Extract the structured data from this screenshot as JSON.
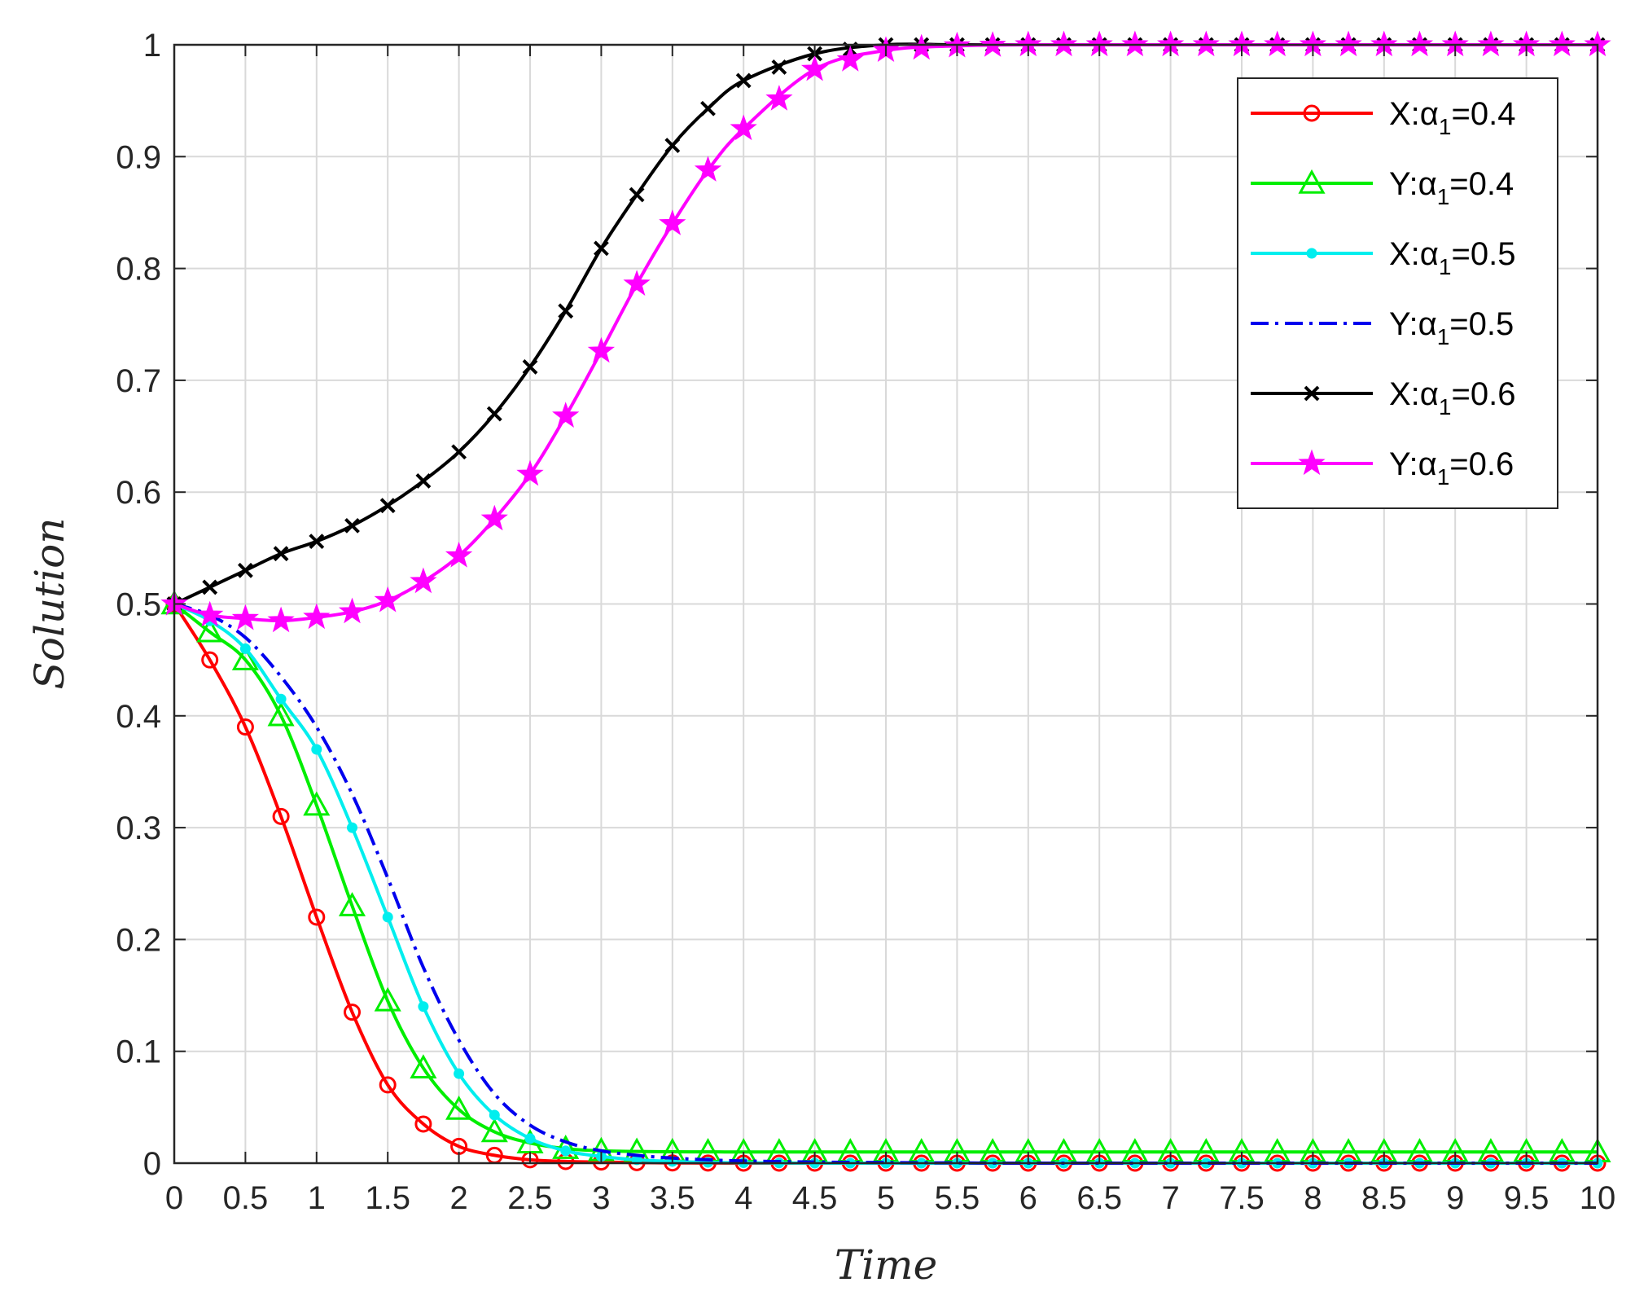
{
  "chart_data": {
    "type": "line",
    "xlabel": "Time",
    "ylabel": "Solution",
    "xlim": [
      0,
      10
    ],
    "ylim": [
      0,
      1
    ],
    "xticks": [
      "0",
      "0.5",
      "1",
      "1.5",
      "2",
      "2.5",
      "3",
      "3.5",
      "4",
      "4.5",
      "5",
      "5.5",
      "6",
      "6.5",
      "7",
      "7.5",
      "8",
      "8.5",
      "9",
      "9.5",
      "10"
    ],
    "yticks": [
      "0",
      "0.1",
      "0.2",
      "0.3",
      "0.4",
      "0.5",
      "0.6",
      "0.7",
      "0.8",
      "0.9",
      "1"
    ],
    "grid": true,
    "legend_position": "top-right",
    "x": [
      0,
      0.25,
      0.5,
      0.75,
      1,
      1.25,
      1.5,
      1.75,
      2,
      2.25,
      2.5,
      2.75,
      3,
      3.25,
      3.5,
      3.75,
      4,
      4.5,
      5,
      5.5,
      6,
      7,
      8,
      9,
      10
    ],
    "series": [
      {
        "name": "X:α1=0.4",
        "name_main": "X:α",
        "name_sub": "1",
        "name_rest": "=0.4",
        "color": "#ff0000",
        "marker": "circle",
        "dash": "",
        "values": [
          0.5,
          0.45,
          0.39,
          0.31,
          0.22,
          0.135,
          0.07,
          0.035,
          0.015,
          0.007,
          0.003,
          0.0015,
          0.001,
          0.0005,
          0.0002,
          0.0001,
          0,
          0,
          0,
          0,
          0,
          0,
          0,
          0,
          0
        ]
      },
      {
        "name": "Y:α1=0.4",
        "name_main": "Y:α",
        "name_sub": "1",
        "name_rest": "=0.4",
        "color": "#00ee00",
        "marker": "triangle",
        "dash": "",
        "values": [
          0.5,
          0.475,
          0.45,
          0.4,
          0.32,
          0.23,
          0.145,
          0.085,
          0.048,
          0.028,
          0.018,
          0.013,
          0.011,
          0.0105,
          0.0102,
          0.0101,
          0.01,
          0.01,
          0.01,
          0.01,
          0.01,
          0.01,
          0.01,
          0.01,
          0.01
        ]
      },
      {
        "name": "X:α1=0.5",
        "name_main": "X:α",
        "name_sub": "1",
        "name_rest": "=0.5",
        "color": "#00eeee",
        "marker": "dot",
        "dash": "",
        "values": [
          0.5,
          0.485,
          0.46,
          0.415,
          0.37,
          0.3,
          0.22,
          0.14,
          0.08,
          0.043,
          0.022,
          0.011,
          0.006,
          0.003,
          0.0015,
          0.0007,
          0.0003,
          0,
          0,
          0,
          0,
          0,
          0,
          0,
          0
        ]
      },
      {
        "name": "Y:α1=0.5",
        "name_main": "Y:α",
        "name_sub": "1",
        "name_rest": "=0.5",
        "color": "#0000ee",
        "marker": "none",
        "dash": "22 8 4 8",
        "values": [
          0.5,
          0.49,
          0.47,
          0.435,
          0.39,
          0.33,
          0.255,
          0.175,
          0.11,
          0.062,
          0.034,
          0.019,
          0.011,
          0.007,
          0.0045,
          0.003,
          0.002,
          0.001,
          0.0005,
          0.0002,
          0,
          0,
          0,
          0,
          0
        ]
      },
      {
        "name": "X:α1=0.6",
        "name_main": "X:α",
        "name_sub": "1",
        "name_rest": "=0.6",
        "color": "#000000",
        "marker": "x",
        "dash": "",
        "values": [
          0.5,
          0.515,
          0.53,
          0.545,
          0.556,
          0.57,
          0.588,
          0.61,
          0.636,
          0.67,
          0.712,
          0.762,
          0.818,
          0.866,
          0.91,
          0.943,
          0.968,
          0.992,
          1.0,
          1.0,
          1.0,
          1.0,
          1.0,
          1.0,
          1.0
        ]
      },
      {
        "name": "Y:α1=0.6",
        "name_main": "Y:α",
        "name_sub": "1",
        "name_rest": "=0.6",
        "color": "#ff00ff",
        "marker": "star",
        "dash": "",
        "values": [
          0.5,
          0.49,
          0.487,
          0.485,
          0.488,
          0.493,
          0.503,
          0.52,
          0.543,
          0.576,
          0.616,
          0.668,
          0.726,
          0.786,
          0.84,
          0.888,
          0.925,
          0.978,
          0.995,
          0.999,
          1.0,
          1.0,
          1.0,
          1.0,
          1.0
        ]
      }
    ]
  }
}
